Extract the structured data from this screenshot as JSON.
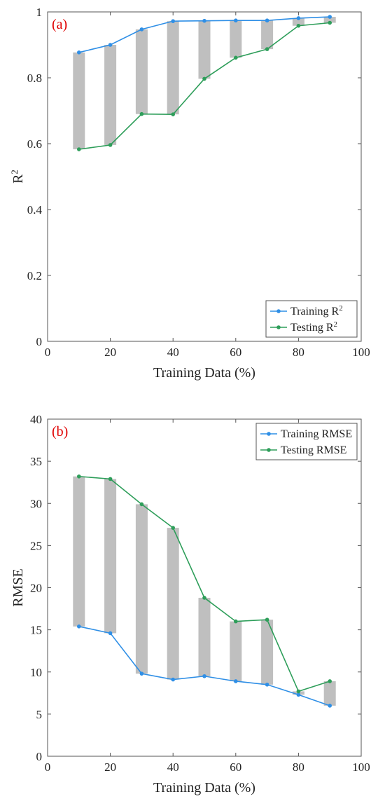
{
  "chart_data": [
    {
      "type": "line",
      "panel_label": "(a)",
      "xlabel": "Training Data (%)",
      "ylabel": "R",
      "ylabel_sup": "2",
      "xlim": [
        0,
        100
      ],
      "ylim": [
        0,
        1
      ],
      "xticks": [
        0,
        20,
        40,
        60,
        80,
        100
      ],
      "yticks": [
        0,
        0.2,
        0.4,
        0.6,
        0.8,
        1
      ],
      "ytick_labels": [
        "0",
        "0.2",
        "0.4",
        "0.6",
        "0.8",
        "1"
      ],
      "grid": false,
      "legend_position": "bottom-right",
      "x": [
        10,
        20,
        30,
        40,
        50,
        60,
        70,
        80,
        90
      ],
      "series": [
        {
          "name": "Training R",
          "name_sup": "2",
          "color": "#2f8fe6",
          "values": [
            0.877,
            0.9,
            0.947,
            0.972,
            0.973,
            0.974,
            0.974,
            0.981,
            0.985
          ]
        },
        {
          "name": "Testing R",
          "name_sup": "2",
          "color": "#2e9e5a",
          "values": [
            0.583,
            0.596,
            0.69,
            0.689,
            0.797,
            0.861,
            0.887,
            0.958,
            0.967
          ]
        }
      ],
      "gap_bar_color": "#bfbfbf"
    },
    {
      "type": "line",
      "panel_label": "(b)",
      "xlabel": "Training Data (%)",
      "ylabel": "RMSE",
      "xlim": [
        0,
        100
      ],
      "ylim": [
        0,
        40
      ],
      "xticks": [
        0,
        20,
        40,
        60,
        80,
        100
      ],
      "yticks": [
        0,
        5,
        10,
        15,
        20,
        25,
        30,
        35,
        40
      ],
      "ytick_labels": [
        "0",
        "5",
        "10",
        "15",
        "20",
        "25",
        "30",
        "35",
        "40"
      ],
      "grid": false,
      "legend_position": "top-right",
      "x": [
        10,
        20,
        30,
        40,
        50,
        60,
        70,
        80,
        90
      ],
      "series": [
        {
          "name": "Training RMSE",
          "color": "#2f8fe6",
          "values": [
            15.4,
            14.6,
            9.8,
            9.1,
            9.5,
            8.9,
            8.5,
            7.3,
            6.0
          ]
        },
        {
          "name": "Testing RMSE",
          "color": "#2e9e5a",
          "values": [
            33.2,
            32.9,
            29.9,
            27.1,
            18.8,
            16.0,
            16.2,
            7.7,
            8.9
          ]
        }
      ],
      "gap_bar_color": "#bfbfbf"
    }
  ]
}
